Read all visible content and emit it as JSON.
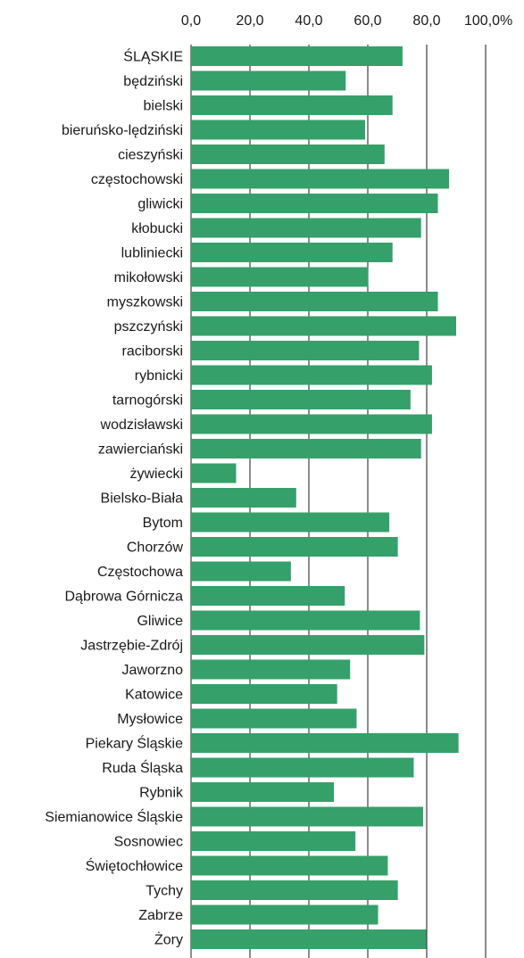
{
  "chart_data": {
    "type": "bar",
    "orientation": "horizontal",
    "title": "",
    "xlabel": "",
    "ylabel": "",
    "xlim": [
      0,
      100
    ],
    "x_ticks": [
      "0,0",
      "20,0",
      "40,0",
      "60,0",
      "80,0",
      "100,0%"
    ],
    "x_tick_values": [
      0,
      20,
      40,
      60,
      80,
      100
    ],
    "x_axis_position": "top",
    "grid": true,
    "legend": "none",
    "bar_color": "#36a06a",
    "categories": [
      "ŚLĄSKIE",
      "będziński",
      "bielski",
      "bieruńsko-lędziński",
      "cieszyński",
      "częstochowski",
      "gliwicki",
      "kłobucki",
      "lubliniecki",
      "mikołowski",
      "myszkowski",
      "pszczyński",
      "raciborski",
      "rybnicki",
      "tarnogórski",
      "wodzisławski",
      "zawierciański",
      "żywiecki",
      "Bielsko-Biała",
      "Bytom",
      "Chorzów",
      "Częstochowa",
      "Dąbrowa Górnicza",
      "Gliwice",
      "Jastrzębie-Zdrój",
      "Jaworzno",
      "Katowice",
      "Mysłowice",
      "Piekary Śląskie",
      "Ruda Śląska",
      "Rybnik",
      "Siemianowice Śląskie",
      "Sosnowiec",
      "Świętochłowice",
      "Tychy",
      "Zabrze",
      "Żory"
    ],
    "values": [
      71.8,
      52.5,
      68.4,
      59.1,
      65.7,
      87.6,
      83.8,
      78.1,
      68.4,
      60.2,
      83.8,
      90.0,
      77.4,
      81.8,
      74.5,
      81.8,
      78.1,
      15.3,
      35.7,
      67.3,
      70.2,
      33.9,
      52.2,
      77.7,
      79.2,
      54.0,
      49.6,
      56.2,
      90.8,
      75.6,
      48.5,
      78.8,
      55.8,
      66.8,
      70.2,
      63.5,
      79.9
    ]
  }
}
